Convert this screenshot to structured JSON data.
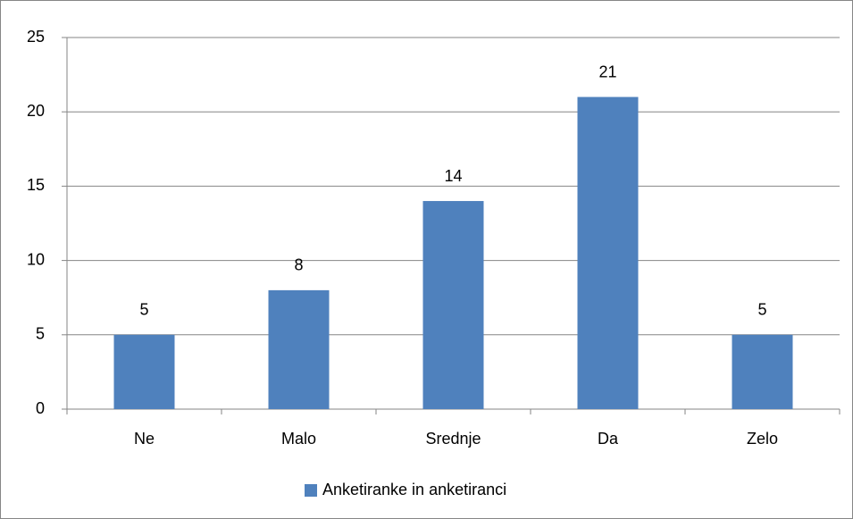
{
  "chart_data": {
    "type": "bar",
    "categories": [
      "Ne",
      "Malo",
      "Srednje",
      "Da",
      "Zelo"
    ],
    "series": [
      {
        "name": "Anketiranke in anketiranci",
        "color": "#4f81bd",
        "values": [
          5,
          8,
          14,
          21,
          5
        ]
      }
    ],
    "ylim": [
      0,
      25
    ],
    "yticks": [
      0,
      5,
      10,
      15,
      20,
      25
    ],
    "grid": true,
    "legend": "bottom"
  }
}
